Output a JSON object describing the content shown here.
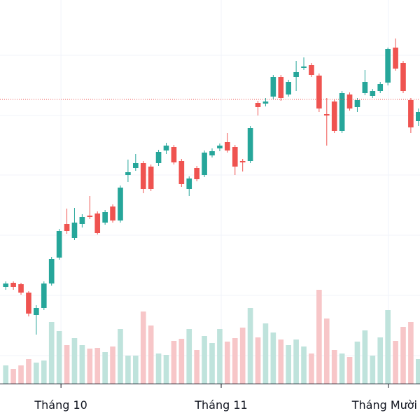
{
  "chart_data": {
    "type": "candlestick",
    "up_color": "#26a69a",
    "down_color": "#ef5350",
    "up_volume_color": "#bfe3dc",
    "down_volume_color": "#f7c6c8",
    "open": [
      190,
      196,
      194,
      182,
      150,
      160,
      195,
      232,
      280,
      260,
      280,
      292,
      295,
      282,
      305,
      285,
      350,
      360,
      367,
      362,
      367,
      385,
      390,
      370,
      330,
      360,
      350,
      378,
      388,
      397,
      390,
      370,
      370,
      453,
      452,
      462,
      490,
      465,
      490,
      503,
      507,
      492,
      437,
      455,
      413,
      465,
      447,
      467,
      463,
      470,
      482,
      532,
      510,
      457,
      427
    ],
    "high": [
      198,
      198,
      196,
      184,
      164,
      198,
      233,
      273,
      302,
      303,
      294,
      320,
      298,
      300,
      308,
      335,
      372,
      380,
      370,
      365,
      386,
      396,
      393,
      373,
      348,
      363,
      385,
      388,
      395,
      410,
      393,
      373,
      420,
      456,
      460,
      493,
      493,
      486,
      513,
      518,
      510,
      495,
      460,
      458,
      470,
      468,
      460,
      500,
      473,
      483,
      532,
      545,
      513,
      460,
      445
    ],
    "low": [
      186,
      186,
      179,
      148,
      122,
      157,
      192,
      229,
      266,
      257,
      275,
      287,
      265,
      279,
      282,
      282,
      340,
      356,
      324,
      327,
      363,
      380,
      365,
      333,
      320,
      341,
      347,
      375,
      384,
      382,
      350,
      355,
      367,
      435,
      448,
      458,
      456,
      462,
      470,
      500,
      490,
      440,
      392,
      410,
      410,
      442,
      440,
      464,
      460,
      467,
      478,
      499,
      467,
      410,
      420
    ],
    "close": [
      195,
      190,
      182,
      152,
      160,
      195,
      230,
      270,
      270,
      282,
      290,
      290,
      267,
      297,
      285,
      332,
      354,
      367,
      330,
      330,
      383,
      392,
      368,
      337,
      345,
      344,
      382,
      384,
      392,
      385,
      362,
      368,
      417,
      447,
      455,
      490,
      460,
      483,
      497,
      505,
      493,
      445,
      435,
      413,
      467,
      445,
      457,
      483,
      470,
      480,
      530,
      502,
      470,
      418,
      440
    ],
    "volume": [
      26,
      21,
      26,
      35,
      30,
      33,
      88,
      75,
      55,
      65,
      55,
      50,
      51,
      45,
      53,
      78,
      40,
      40,
      103,
      83,
      43,
      41,
      61,
      64,
      78,
      48,
      68,
      58,
      78,
      60,
      65,
      80,
      108,
      66,
      86,
      73,
      63,
      55,
      63,
      53,
      43,
      134,
      93,
      48,
      43,
      38,
      60,
      76,
      40,
      66,
      105,
      61,
      81,
      88,
      35
    ],
    "xlim": [
      -0.75,
      54.2
    ],
    "ylim": [
      52,
      600
    ],
    "y2lim": [
      0,
      548
    ],
    "xticks": [
      {
        "value": 7.23,
        "label": "Tháng 10"
      },
      {
        "value": 28.19,
        "label": "Tháng 11"
      },
      {
        "value": 50.06,
        "label": "Tháng Mười"
      }
    ],
    "ygrid": [
      521,
      435,
      350,
      264,
      178,
      92
    ],
    "price_line": 458,
    "price_line_color": "#ef5350",
    "grid": true
  }
}
